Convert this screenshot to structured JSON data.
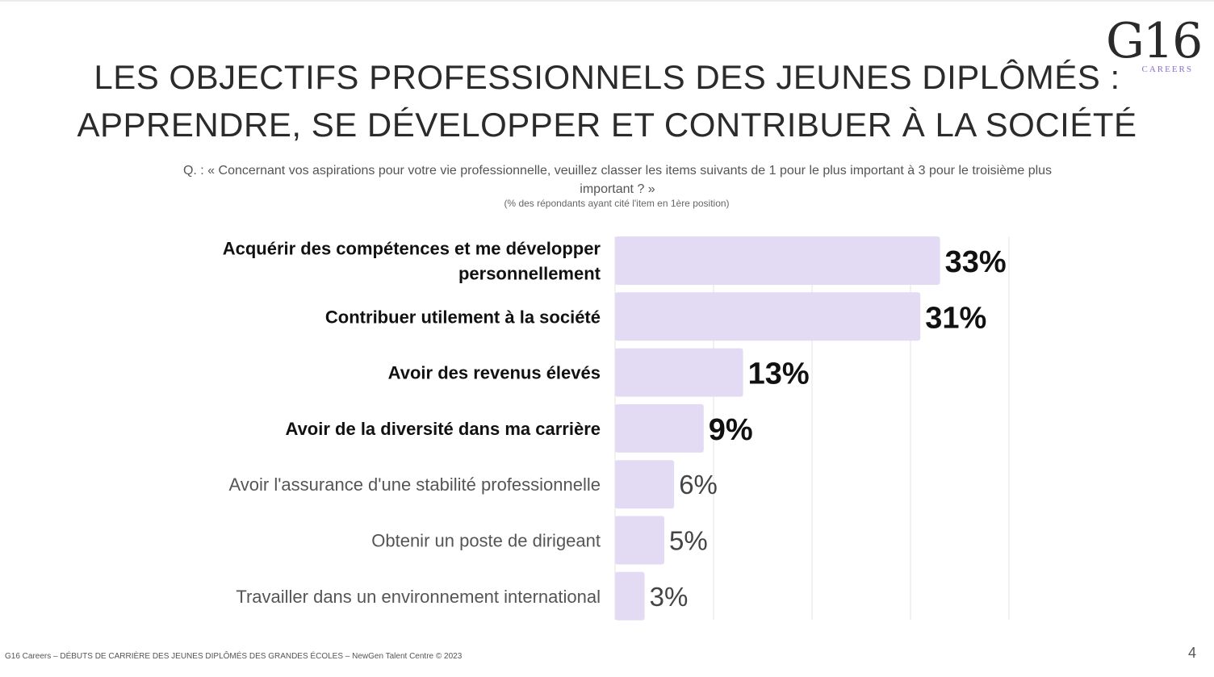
{
  "logo": {
    "mark": "G16",
    "sub": "CAREERS"
  },
  "slide": {
    "title_line1": "LES OBJECTIFS PROFESSIONNELS DES JEUNES DIPLÔMÉS :",
    "title_line2": "APPRENDRE, SE DÉVELOPPER ET CONTRIBUER À LA SOCIÉTÉ",
    "question": "Q. : « Concernant vos aspirations pour votre vie professionnelle, veuillez classer les items suivants de 1 pour le plus important à 3 pour le troisième plus important ? »",
    "note": "(% des répondants ayant cité l'item en 1ère position)",
    "footer": "G16 Careers – DÉBUTS DE CARRIÈRE DES JEUNES DIPLÔMÉS DES GRANDES ÉCOLES – NewGen Talent Centre © 2023",
    "page_number": "4"
  },
  "chart_data": {
    "type": "bar",
    "orientation": "horizontal",
    "title": "",
    "xlabel": "",
    "ylabel": "",
    "xlim": [
      0,
      40
    ],
    "grid": true,
    "bar_color": "#e2dbf3",
    "categories": [
      [
        "Acquérir des compétences et me développer",
        "personnellement"
      ],
      [
        "Contribuer utilement à la société"
      ],
      [
        "Avoir des revenus élevés"
      ],
      [
        "Avoir de la diversité dans ma carrière"
      ],
      [
        "Avoir l'assurance d'une stabilité professionnelle"
      ],
      [
        "Obtenir un poste de dirigeant"
      ],
      [
        "Travailler dans un environnement international"
      ]
    ],
    "values": [
      33,
      31,
      13,
      9,
      6,
      5,
      3
    ],
    "value_labels": [
      "33%",
      "31%",
      "13%",
      "9%",
      "6%",
      "5%",
      "3%"
    ],
    "emphasized": [
      true,
      true,
      true,
      true,
      false,
      false,
      false
    ]
  }
}
